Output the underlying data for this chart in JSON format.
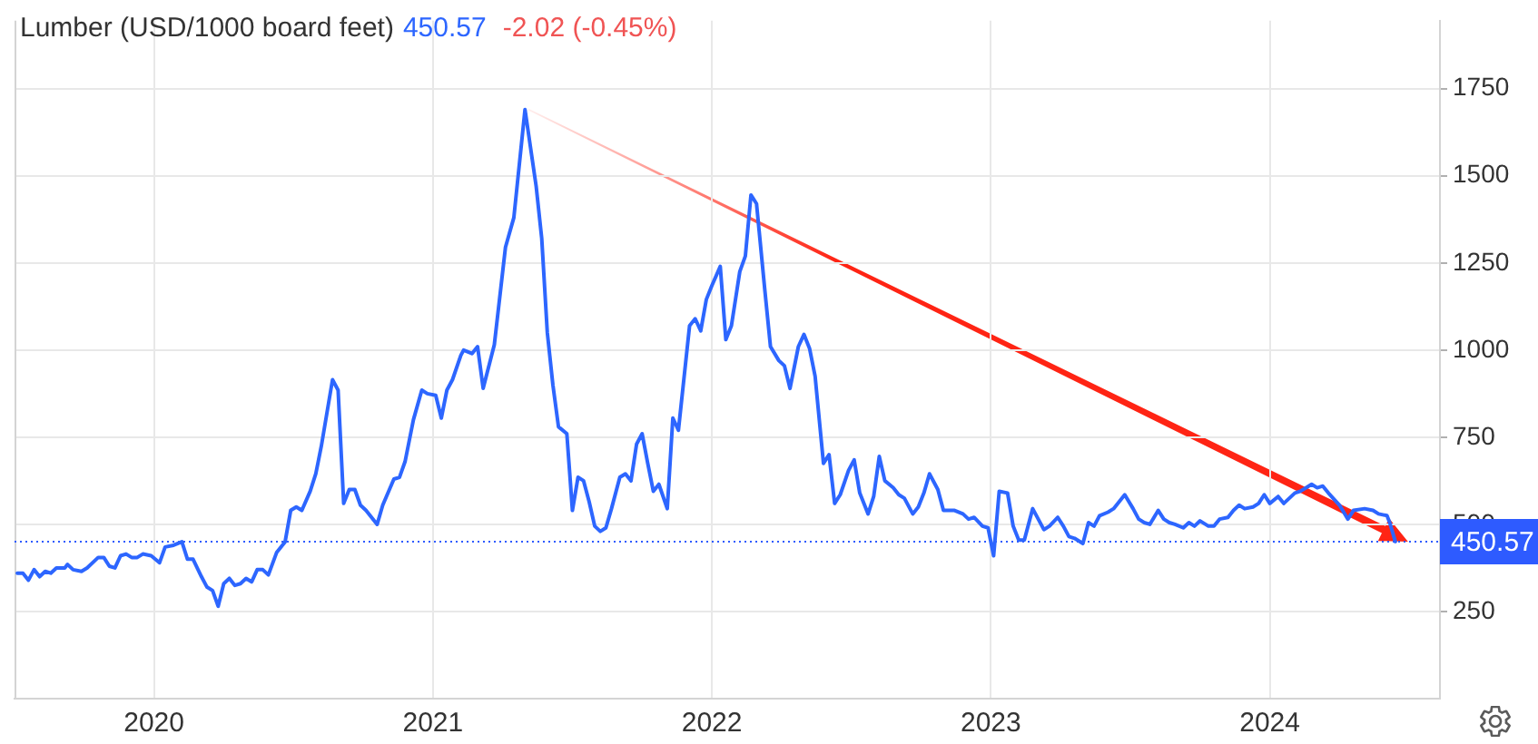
{
  "chart_data": {
    "type": "line",
    "title": "Lumber (USD/1000 board feet)",
    "annotations": [
      "450.57",
      "-2.02 (-0.45%)"
    ],
    "x": [
      2019.51,
      2019.53,
      2019.55,
      2019.57,
      2019.59,
      2019.61,
      2019.63,
      2019.65,
      2019.68,
      2019.69,
      2019.71,
      2019.74,
      2019.76,
      2019.8,
      2019.82,
      2019.84,
      2019.86,
      2019.88,
      2019.9,
      2019.92,
      2019.94,
      2019.96,
      2019.99,
      2020.02,
      2020.04,
      2020.07,
      2020.1,
      2020.12,
      2020.14,
      2020.17,
      2020.19,
      2020.21,
      2020.23,
      2020.25,
      2020.27,
      2020.29,
      2020.31,
      2020.33,
      2020.35,
      2020.37,
      2020.39,
      2020.41,
      2020.44,
      2020.47,
      2020.49,
      2020.51,
      2020.53,
      2020.56,
      2020.58,
      2020.6,
      2020.64,
      2020.66,
      2020.68,
      2020.7,
      2020.72,
      2020.74,
      2020.76,
      2020.8,
      2020.82,
      2020.86,
      2020.88,
      2020.9,
      2020.93,
      2020.96,
      2020.98,
      2021.01,
      2021.03,
      2021.05,
      2021.07,
      2021.1,
      2021.11,
      2021.14,
      2021.16,
      2021.18,
      2021.22,
      2021.26,
      2021.29,
      2021.33,
      2021.37,
      2021.39,
      2021.41,
      2021.43,
      2021.45,
      2021.48,
      2021.5,
      2021.52,
      2021.54,
      2021.56,
      2021.58,
      2021.6,
      2021.62,
      2021.64,
      2021.67,
      2021.69,
      2021.71,
      2021.73,
      2021.75,
      2021.77,
      2021.79,
      2021.81,
      2021.84,
      2021.86,
      2021.88,
      2021.92,
      2021.94,
      2021.96,
      2021.98,
      2022.0,
      2022.03,
      2022.05,
      2022.07,
      2022.1,
      2022.12,
      2022.14,
      2022.16,
      2022.19,
      2022.21,
      2022.24,
      2022.26,
      2022.28,
      2022.31,
      2022.33,
      2022.35,
      2022.37,
      2022.4,
      2022.42,
      2022.44,
      2022.46,
      2022.49,
      2022.51,
      2022.53,
      2022.56,
      2022.58,
      2022.6,
      2022.62,
      2022.65,
      2022.67,
      2022.69,
      2022.72,
      2022.74,
      2022.76,
      2022.78,
      2022.81,
      2022.83,
      2022.85,
      2022.87,
      2022.9,
      2022.92,
      2022.94,
      2022.97,
      2022.99,
      2023.01,
      2023.03,
      2023.06,
      2023.08,
      2023.1,
      2023.12,
      2023.15,
      2023.17,
      2023.19,
      2023.21,
      2023.24,
      2023.26,
      2023.28,
      2023.3,
      2023.33,
      2023.35,
      2023.37,
      2023.39,
      2023.42,
      2023.44,
      2023.46,
      2023.48,
      2023.51,
      2023.53,
      2023.55,
      2023.57,
      2023.6,
      2023.62,
      2023.64,
      2023.66,
      2023.69,
      2023.71,
      2023.73,
      2023.75,
      2023.78,
      2023.8,
      2023.82,
      2023.85,
      2023.87,
      2023.89,
      2023.91,
      2023.94,
      2023.96,
      2023.98,
      2024.0,
      2024.03,
      2024.05,
      2024.07,
      2024.09,
      2024.11,
      2024.15,
      2024.17,
      2024.19,
      2024.21,
      2024.25,
      2024.28,
      2024.3,
      2024.34,
      2024.37,
      2024.39,
      2024.42,
      2024.43,
      2024.45
    ],
    "values": [
      360,
      360,
      340,
      370,
      350,
      365,
      360,
      375,
      375,
      385,
      370,
      365,
      375,
      405,
      405,
      380,
      375,
      410,
      415,
      405,
      405,
      415,
      410,
      390,
      435,
      440,
      450,
      400,
      400,
      350,
      320,
      310,
      265,
      330,
      345,
      325,
      330,
      345,
      335,
      370,
      370,
      355,
      420,
      450,
      540,
      550,
      540,
      595,
      645,
      725,
      915,
      885,
      560,
      600,
      600,
      555,
      540,
      500,
      555,
      630,
      635,
      680,
      800,
      885,
      875,
      870,
      805,
      885,
      915,
      985,
      1000,
      990,
      1010,
      890,
      1015,
      1295,
      1380,
      1690,
      1470,
      1320,
      1050,
      900,
      780,
      760,
      540,
      635,
      625,
      565,
      495,
      480,
      490,
      545,
      635,
      645,
      625,
      730,
      760,
      675,
      595,
      615,
      545,
      805,
      770,
      1070,
      1090,
      1055,
      1145,
      1185,
      1240,
      1030,
      1070,
      1225,
      1270,
      1445,
      1420,
      1170,
      1010,
      970,
      955,
      890,
      1010,
      1045,
      1005,
      925,
      675,
      700,
      560,
      585,
      655,
      685,
      590,
      530,
      580,
      695,
      625,
      605,
      585,
      575,
      530,
      550,
      590,
      645,
      600,
      540,
      540,
      540,
      530,
      515,
      520,
      495,
      490,
      410,
      595,
      590,
      495,
      455,
      455,
      545,
      515,
      485,
      495,
      520,
      495,
      465,
      460,
      445,
      505,
      495,
      525,
      535,
      545,
      565,
      585,
      545,
      515,
      505,
      500,
      540,
      515,
      505,
      500,
      490,
      505,
      495,
      510,
      495,
      495,
      515,
      520,
      540,
      555,
      545,
      550,
      560,
      585,
      560,
      580,
      560,
      575,
      590,
      595,
      615,
      605,
      610,
      590,
      555,
      515,
      540,
      545,
      540,
      530,
      525,
      505,
      450.57
    ],
    "color": "#2d66ff",
    "xlim": [
      2019.5,
      2024.61
    ],
    "xticks": [
      2020,
      2021,
      2022,
      2023,
      2024
    ],
    "ylim": [
      0,
      1945
    ],
    "yticks": [
      250,
      500,
      750,
      1000,
      1250,
      1500,
      1750
    ],
    "grid": true,
    "ref_lines": [
      {
        "axis": "y",
        "value": 450.57,
        "label": "450.57",
        "color": "#2e5bff",
        "line_style": "dotted"
      }
    ]
  }
}
